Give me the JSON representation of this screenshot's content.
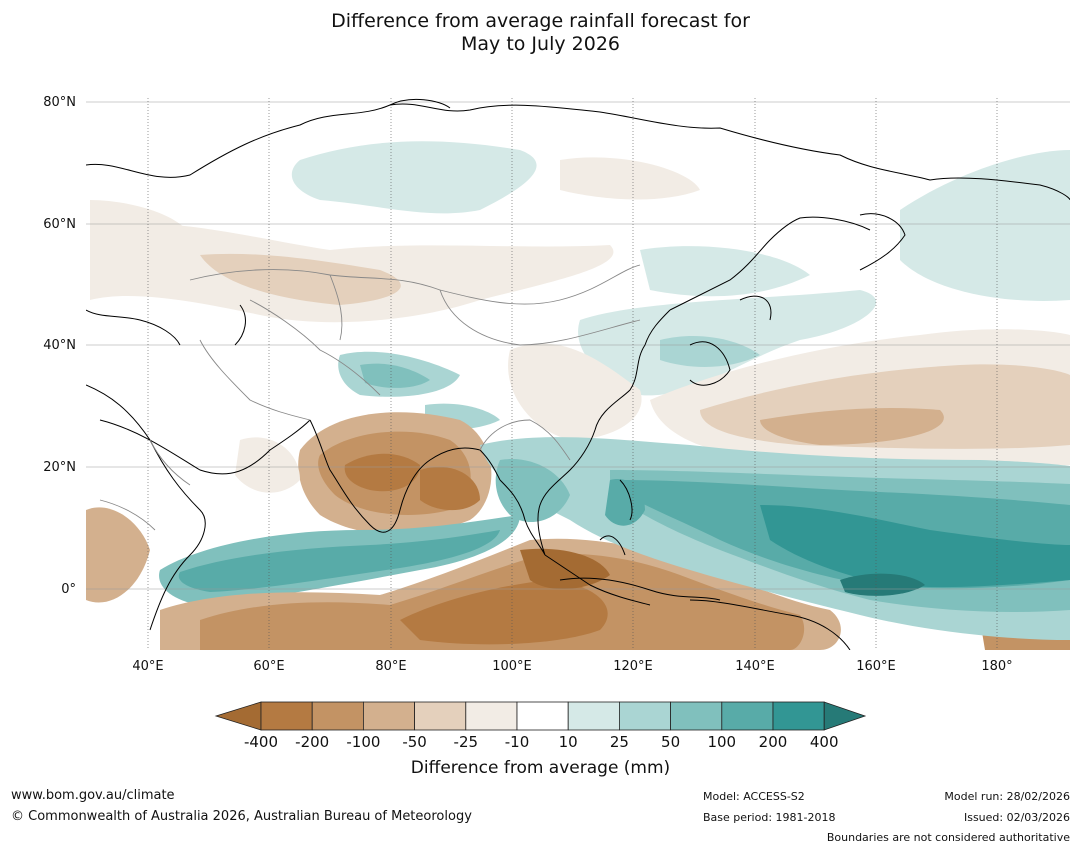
{
  "title": {
    "line1": "Difference from average rainfall forecast for",
    "line2": "May to July 2026"
  },
  "map": {
    "projection": "equirectangular",
    "lon_range": [
      30,
      192
    ],
    "lat_range": [
      -10,
      81
    ],
    "lat_labels": [
      "80°N",
      "60°N",
      "40°N",
      "20°N",
      "0°"
    ],
    "lon_labels": [
      "40°E",
      "60°E",
      "80°E",
      "100°E",
      "120°E",
      "140°E",
      "160°E",
      "180°"
    ]
  },
  "legend": {
    "title": "Difference from average (mm)",
    "ticks": [
      "-400",
      "-200",
      "-100",
      "-50",
      "-25",
      "-10",
      "10",
      "25",
      "50",
      "100",
      "200",
      "400"
    ],
    "colors": [
      "#a46b33",
      "#b47a42",
      "#c39364",
      "#d3b08e",
      "#e4d0bc",
      "#f2ece5",
      "#ffffff",
      "#d5e9e7",
      "#aad5d3",
      "#80c0bd",
      "#58aba8",
      "#329694",
      "#267a77"
    ]
  },
  "footer": {
    "url": "www.bom.gov.au/climate",
    "copyright": "© Commonwealth of Australia 2026, Australian Bureau of Meteorology",
    "model": "Model: ACCESS-S2",
    "base_period": "Base period: 1981-2018",
    "model_run": "Model run: 28/02/2026",
    "issued": "Issued: 02/03/2026",
    "disclaimer": "Boundaries are not considered authoritative"
  }
}
